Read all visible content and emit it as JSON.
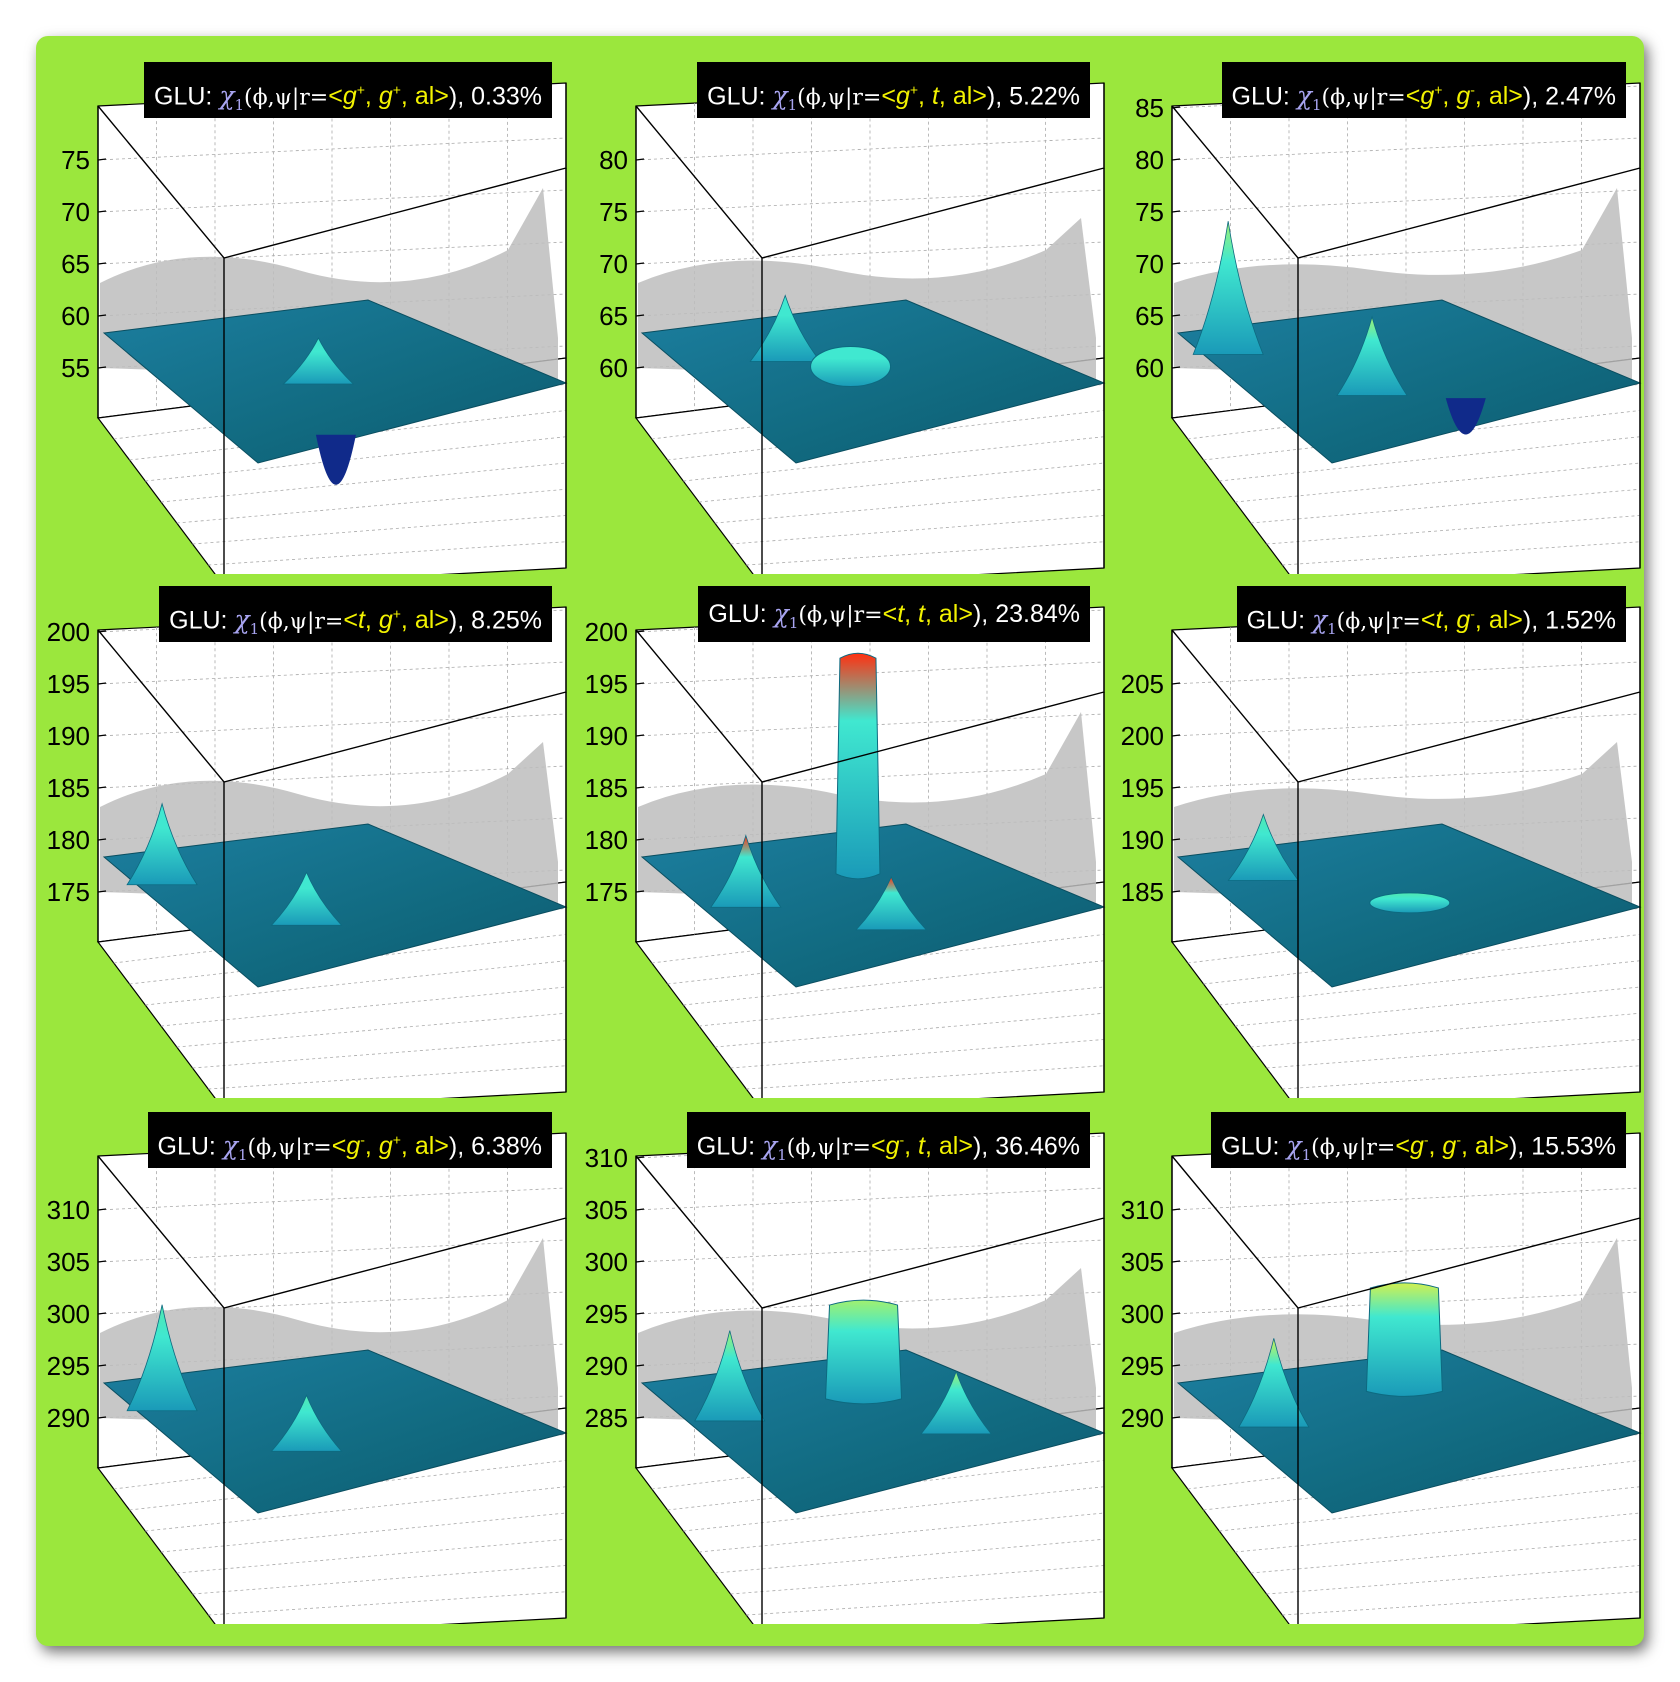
{
  "chart_data": [
    {
      "type": "surface",
      "title": {
        "prefix": "GLU: ",
        "chi": "χ",
        "chi_sub": "1",
        "args": "(ϕ,ψ|r=",
        "state": [
          "g",
          "+",
          "g",
          "+",
          "al"
        ],
        "pct": "0.33%"
      },
      "zticks": [
        "55",
        "60",
        "65",
        "70",
        "75"
      ],
      "zlim": [
        50,
        80
      ],
      "plane_level": 58,
      "peak_color": "#40e0c8",
      "features": [
        {
          "label": "bump",
          "x": 0.45,
          "y": 0.55,
          "height": 4
        },
        {
          "label": "dip",
          "x": 0.28,
          "y": 0.95,
          "height": -10
        }
      ]
    },
    {
      "type": "surface",
      "title": {
        "prefix": "GLU: ",
        "chi": "χ",
        "chi_sub": "1",
        "args": "(ϕ,ψ|r=",
        "state": [
          "g",
          "+",
          "t",
          "",
          "al"
        ],
        "pct": "5.22%"
      },
      "zticks": [
        "60",
        "65",
        "70",
        "75",
        "80"
      ],
      "zlim": [
        55,
        85
      ],
      "plane_level": 61,
      "peak_color": "#40e8d0",
      "features": [
        {
          "label": "ridge",
          "x": 0.35,
          "y": 0.3,
          "height": 6
        },
        {
          "label": "ring",
          "x": 0.4,
          "y": 0.6,
          "height": 4
        }
      ]
    },
    {
      "type": "surface",
      "title": {
        "prefix": "GLU: ",
        "chi": "χ",
        "chi_sub": "1",
        "args": "(ϕ,ψ|r=",
        "state": [
          "g",
          "+",
          "g",
          "-",
          "al"
        ],
        "pct": "2.47%"
      },
      "zticks": [
        "60",
        "65",
        "70",
        "75",
        "80",
        "85"
      ],
      "zlim": [
        55,
        88
      ],
      "plane_level": 62,
      "peak_color": "#a0f070",
      "features": [
        {
          "label": "peak",
          "x": 0.1,
          "y": 0.15,
          "height": 14
        },
        {
          "label": "peak",
          "x": 0.35,
          "y": 0.6,
          "height": 8
        },
        {
          "label": "dip",
          "x": 0.55,
          "y": 0.8,
          "height": -8
        }
      ]
    },
    {
      "type": "surface",
      "title": {
        "prefix": "GLU: ",
        "chi": "χ",
        "chi_sub": "1",
        "args": "(ϕ,ψ|r=",
        "state": [
          "t",
          "",
          "g",
          "+",
          "al"
        ],
        "pct": "8.25%"
      },
      "zticks": [
        "175",
        "180",
        "185",
        "190",
        "195",
        "200"
      ],
      "zlim": [
        170,
        202
      ],
      "plane_level": 176,
      "peak_color": "#40e8d0",
      "features": [
        {
          "label": "peak",
          "x": 0.1,
          "y": 0.2,
          "height": 8
        },
        {
          "label": "peak",
          "x": 0.35,
          "y": 0.65,
          "height": 5
        }
      ]
    },
    {
      "type": "surface",
      "title": {
        "prefix": "GLU: ",
        "chi": "χ",
        "chi_sub": "1",
        "args": "(ϕ,ψ|r=",
        "state": [
          "t",
          "",
          "t",
          "",
          "al"
        ],
        "pct": "23.84%"
      },
      "zticks": [
        "175",
        "180",
        "185",
        "190",
        "195",
        "200"
      ],
      "zlim": [
        172,
        204
      ],
      "plane_level": 177,
      "peak_color": "#ff3010",
      "features": [
        {
          "label": "column",
          "x": 0.58,
          "y": 0.35,
          "height": 23
        },
        {
          "label": "peak",
          "x": 0.15,
          "y": 0.4,
          "height": 7
        },
        {
          "label": "peak",
          "x": 0.45,
          "y": 0.75,
          "height": 5
        }
      ]
    },
    {
      "type": "surface",
      "title": {
        "prefix": "GLU: ",
        "chi": "χ",
        "chi_sub": "1",
        "args": "(ϕ,ψ|r=",
        "state": [
          "t",
          "",
          "g",
          "-",
          "al"
        ],
        "pct": "1.52%"
      },
      "zticks": [
        "185",
        "190",
        "195",
        "200",
        "205"
      ],
      "zlim": [
        180,
        210
      ],
      "plane_level": 184,
      "peak_color": "#50e8b0",
      "features": [
        {
          "label": "peak",
          "x": 0.2,
          "y": 0.2,
          "height": 6
        },
        {
          "label": "ring",
          "x": 0.45,
          "y": 0.65,
          "height": 2
        }
      ]
    },
    {
      "type": "surface",
      "title": {
        "prefix": "GLU: ",
        "chi": "χ",
        "chi_sub": "1",
        "args": "(ϕ,ψ|r=",
        "state": [
          "g",
          "-",
          "g",
          "+",
          "al"
        ],
        "pct": "6.38%"
      },
      "zticks": [
        "290",
        "295",
        "300",
        "305",
        "310"
      ],
      "zlim": [
        285,
        315
      ],
      "plane_level": 289,
      "peak_color": "#50e8b0",
      "features": [
        {
          "label": "peak",
          "x": 0.1,
          "y": 0.2,
          "height": 10
        },
        {
          "label": "peak",
          "x": 0.35,
          "y": 0.65,
          "height": 5
        }
      ]
    },
    {
      "type": "surface",
      "title": {
        "prefix": "GLU: ",
        "chi": "χ",
        "chi_sub": "1",
        "args": "(ϕ,ψ|r=",
        "state": [
          "g",
          "-",
          "t",
          "",
          "al"
        ],
        "pct": "36.46%"
      },
      "zticks": [
        "285",
        "290",
        "295",
        "300",
        "305",
        "310"
      ],
      "zlim": [
        282,
        314
      ],
      "plane_level": 285,
      "peak_color": "#a0f070",
      "features": [
        {
          "label": "ridge",
          "x": 0.15,
          "y": 0.3,
          "height": 9
        },
        {
          "label": "plateau",
          "x": 0.6,
          "y": 0.35,
          "height": 10
        },
        {
          "label": "peak",
          "x": 0.7,
          "y": 0.7,
          "height": 6
        }
      ]
    },
    {
      "type": "surface",
      "title": {
        "prefix": "GLU: ",
        "chi": "χ",
        "chi_sub": "1",
        "args": "(ϕ,ψ|r=",
        "state": [
          "g",
          "-",
          "g",
          "-",
          "al"
        ],
        "pct": "15.53%"
      },
      "zticks": [
        "290",
        "295",
        "300",
        "305",
        "310"
      ],
      "zlim": [
        286,
        315
      ],
      "plane_level": 289,
      "peak_color": "#d0f050",
      "features": [
        {
          "label": "ridge",
          "x": 0.15,
          "y": 0.35,
          "height": 8
        },
        {
          "label": "plateau",
          "x": 0.65,
          "y": 0.3,
          "height": 10
        }
      ]
    }
  ],
  "colors": {
    "background": "#9be73d",
    "surface": "#116a80",
    "shadow": "#bdbdbd",
    "title_bg": "#000000",
    "chi": "#a8a4f0",
    "state": "#f2f200"
  }
}
